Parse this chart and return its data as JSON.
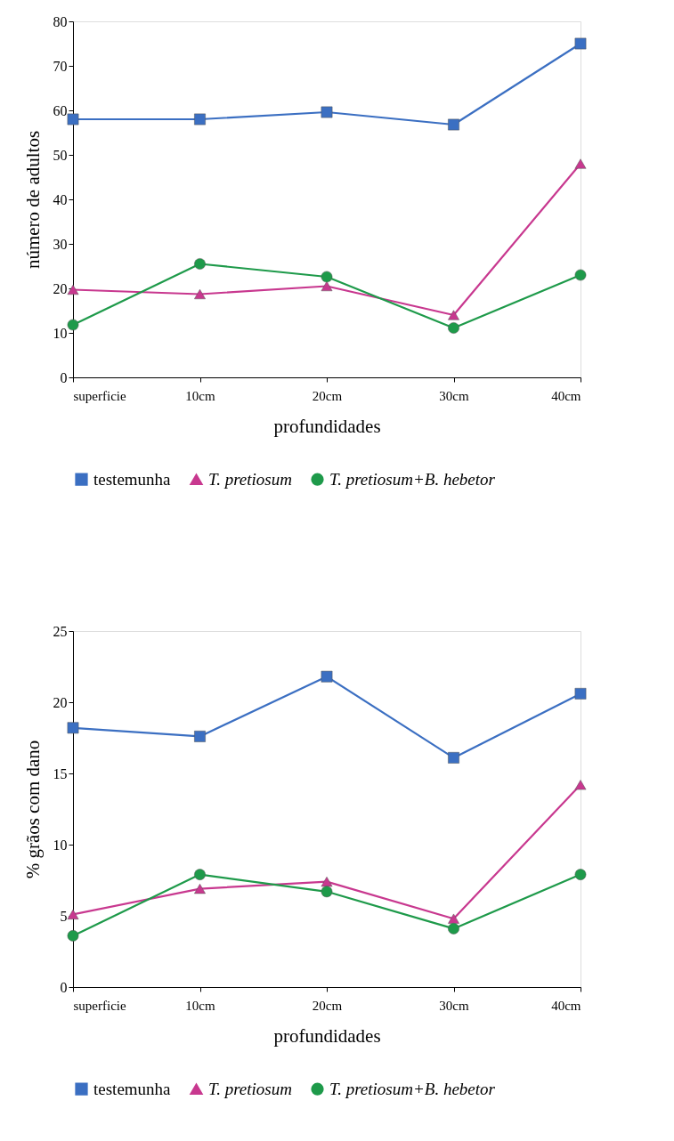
{
  "chart_data": [
    {
      "type": "line",
      "xlabel": "profundidades",
      "ylabel": "número de adultos",
      "categories": [
        "superficie",
        "10cm",
        "20cm",
        "30cm",
        "40cm"
      ],
      "ylim": [
        0,
        80
      ],
      "yticks": [
        0,
        10,
        20,
        30,
        40,
        50,
        60,
        70,
        80
      ],
      "grid": false,
      "legend": "bottom",
      "line_style": "solid",
      "series": [
        {
          "name": "testemunha",
          "color": "#3b6fc2",
          "marker": "square",
          "values": [
            58,
            58,
            59.6,
            56.8,
            75
          ]
        },
        {
          "name": "T. pretiosum",
          "color": "#c8388f",
          "marker": "triangle",
          "values": [
            19.7,
            18.7,
            20.5,
            14,
            48
          ]
        },
        {
          "name": "T. pretiosum+B. hebetor",
          "color": "#1e9a4a",
          "marker": "circle",
          "values": [
            11.8,
            25.5,
            22.6,
            11.1,
            23
          ]
        }
      ]
    },
    {
      "type": "line",
      "xlabel": "profundidades",
      "ylabel": "% grãos com dano",
      "categories": [
        "superficie",
        "10cm",
        "20cm",
        "30cm",
        "40cm"
      ],
      "ylim": [
        0,
        25
      ],
      "yticks": [
        0,
        5,
        10,
        15,
        20,
        25
      ],
      "grid": false,
      "legend": "bottom",
      "line_style": "solid",
      "series": [
        {
          "name": "testemunha",
          "color": "#3b6fc2",
          "marker": "square",
          "values": [
            18.2,
            17.6,
            21.8,
            16.1,
            20.6
          ]
        },
        {
          "name": "T. pretiosum",
          "color": "#c8388f",
          "marker": "triangle",
          "values": [
            5.1,
            6.9,
            7.4,
            4.8,
            14.2
          ]
        },
        {
          "name": "T. pretiosum+B. hebetor",
          "color": "#1e9a4a",
          "marker": "circle",
          "values": [
            3.6,
            7.9,
            6.7,
            4.1,
            7.9
          ]
        }
      ]
    }
  ]
}
